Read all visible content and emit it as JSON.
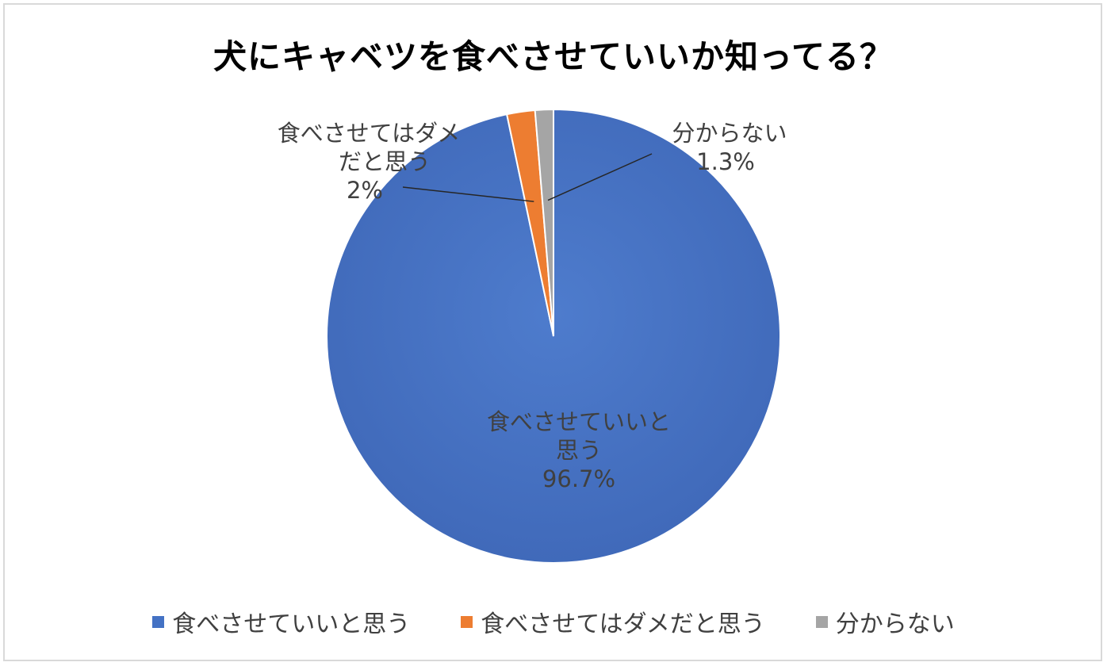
{
  "chart_data": {
    "type": "pie",
    "title": "犬にキャベツを食べさせていいか知ってる？",
    "legend_position": "bottom",
    "slices": [
      {
        "name": "食べさせていいと思う",
        "value": 96.7,
        "value_label": "96.7%",
        "label_lines": [
          "食べさせていいと",
          "思う"
        ],
        "color": "#4472c4"
      },
      {
        "name": "食べさせてはダメだと思う",
        "value": 2,
        "value_label": "2%",
        "label_lines": [
          "食べさせてはダメ",
          "だと思う"
        ],
        "color": "#ed7d31"
      },
      {
        "name": "分からない",
        "value": 1.3,
        "value_label": "1.3%",
        "label_lines": [
          "分からない"
        ],
        "color": "#a5a5a5"
      }
    ]
  }
}
